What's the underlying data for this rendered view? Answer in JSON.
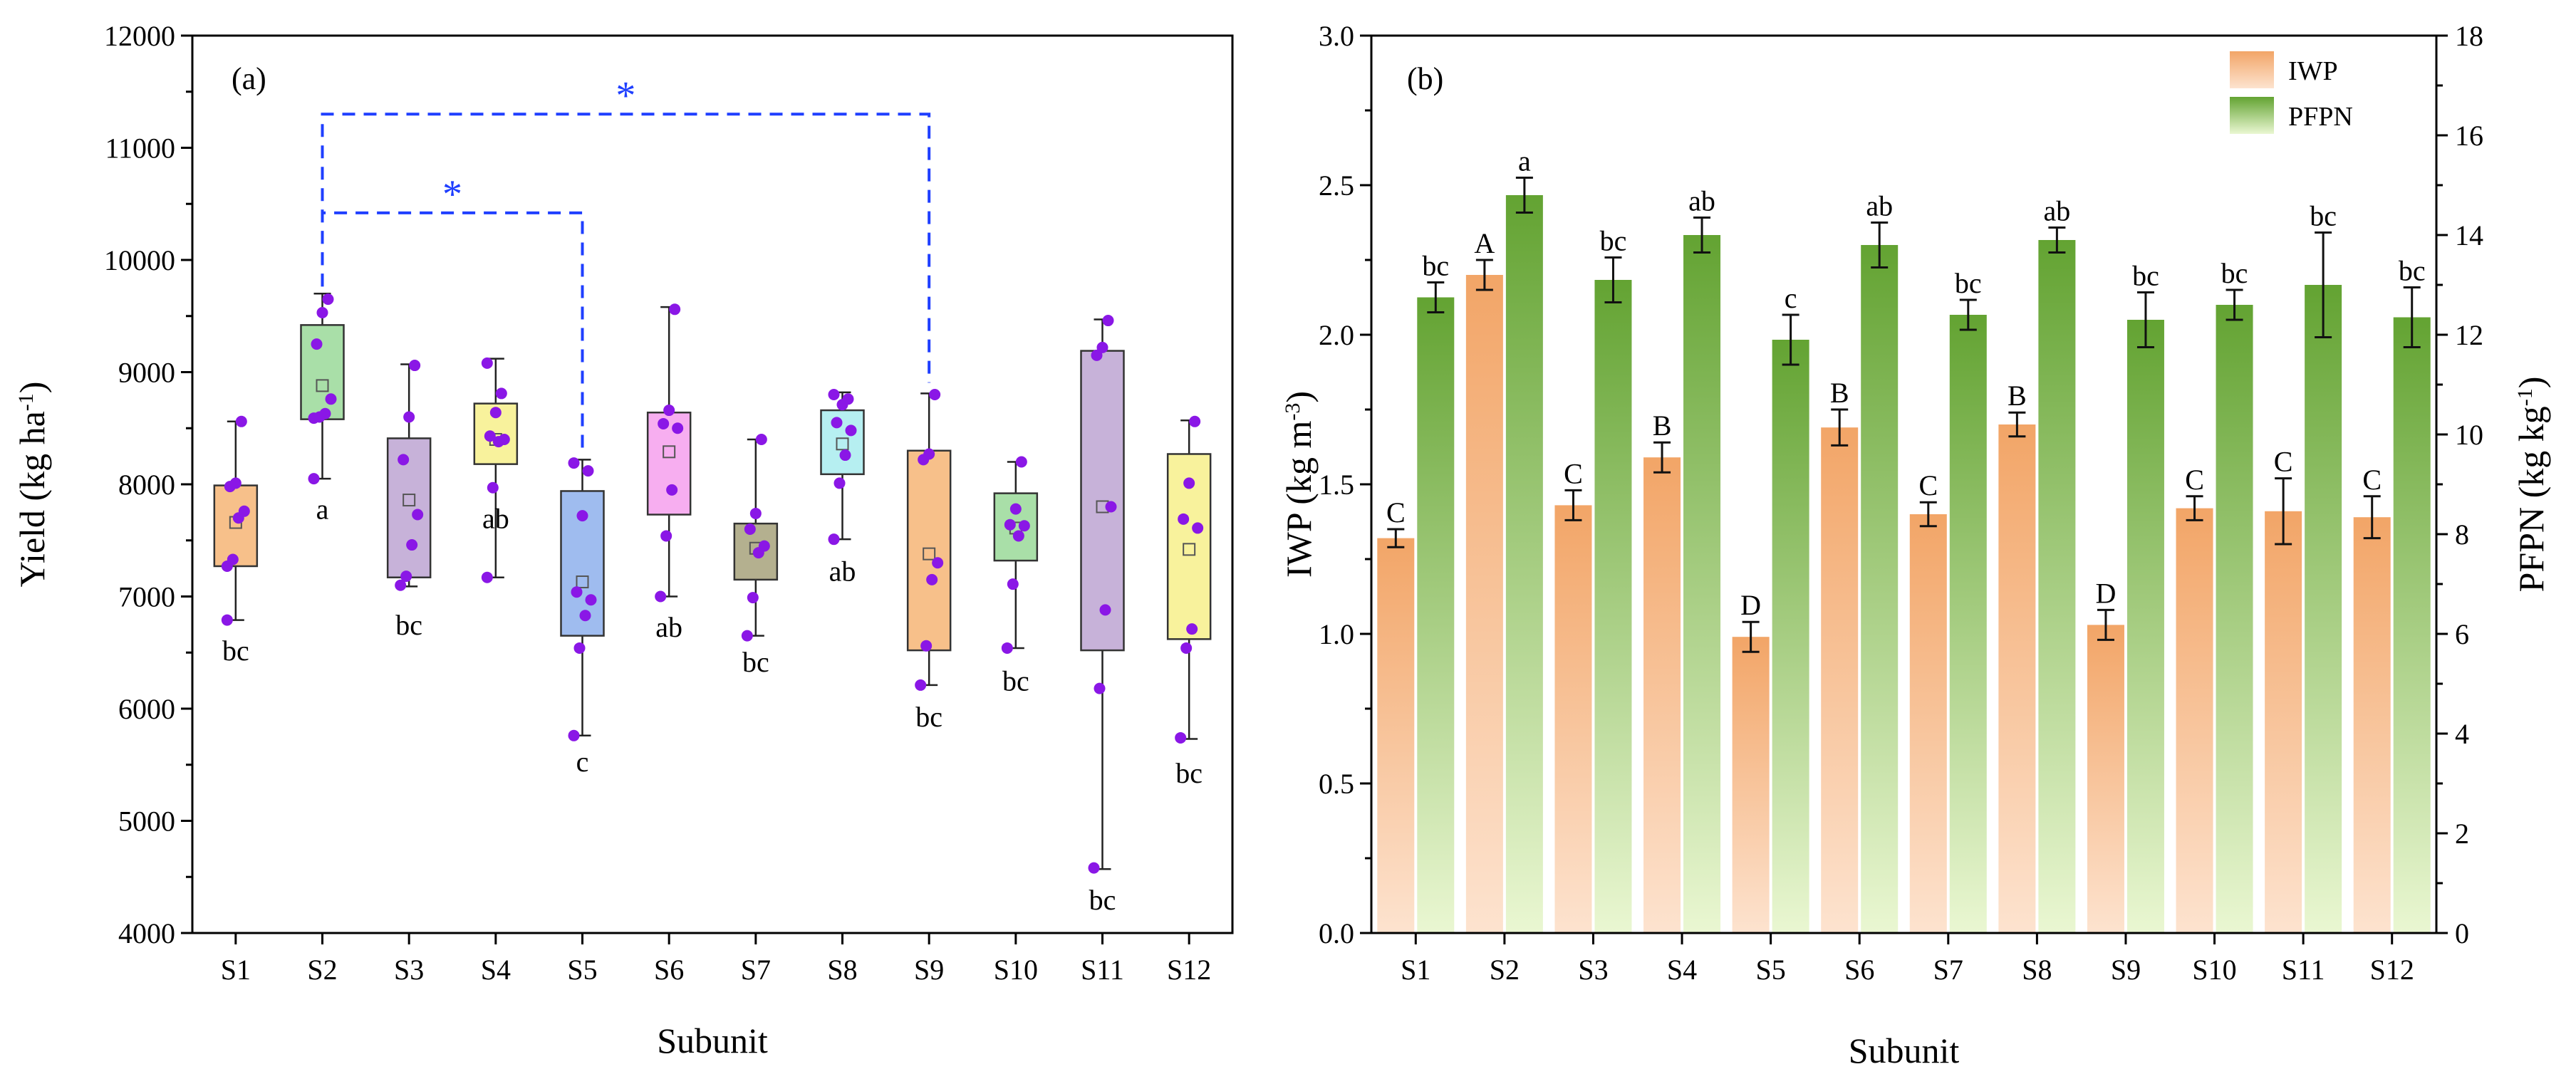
{
  "chart_data": [
    {
      "type": "box",
      "panel_label": "(a)",
      "xlabel": "Subunit",
      "ylabel": "Yield (kg ha",
      "ylabel_sup": "-1",
      "ylabel_close": ")",
      "ylim": [
        4000,
        12000
      ],
      "yticks": [
        "4000",
        "5000",
        "6000",
        "7000",
        "8000",
        "9000",
        "10000",
        "11000",
        "12000"
      ],
      "categories": [
        "S1",
        "S2",
        "S3",
        "S4",
        "S5",
        "S6",
        "S7",
        "S8",
        "S9",
        "S10",
        "S11",
        "S12"
      ],
      "boxes": [
        {
          "q1": 7270,
          "q3": 7990,
          "mean": 7660,
          "wlo": 6790,
          "whi": 8560,
          "color": "#f7c08a",
          "letter": "bc",
          "letter_y": 6520,
          "points": [
            7270,
            7330,
            7700,
            7760,
            7980,
            8010,
            8560,
            6790
          ]
        },
        {
          "q1": 8580,
          "q3": 9420,
          "mean": 8880,
          "wlo": 8050,
          "whi": 9700,
          "color": "#a9dfa8",
          "letter": "a",
          "letter_y": 7780,
          "points": [
            8590,
            8600,
            8630,
            8760,
            9250,
            9530,
            9650,
            8050
          ]
        },
        {
          "q1": 7170,
          "q3": 8410,
          "mean": 7860,
          "wlo": 7090,
          "whi": 9070,
          "color": "#c7b2d9",
          "letter": "bc",
          "letter_y": 6750,
          "points": [
            7100,
            7180,
            7460,
            7730,
            8220,
            8600,
            9060
          ]
        },
        {
          "q1": 8180,
          "q3": 8720,
          "mean": 8400,
          "wlo": 7170,
          "whi": 9120,
          "color": "#f8f29c",
          "letter": "ab",
          "letter_y": 7700,
          "points": [
            7170,
            7970,
            8380,
            8400,
            8430,
            8640,
            8810,
            9080
          ]
        },
        {
          "q1": 6650,
          "q3": 7940,
          "mean": 7130,
          "wlo": 5760,
          "whi": 8220,
          "color": "#9fbcef",
          "letter": "c",
          "letter_y": 5530,
          "points": [
            5760,
            6540,
            6830,
            6970,
            7040,
            7720,
            8120,
            8190
          ]
        },
        {
          "q1": 7730,
          "q3": 8640,
          "mean": 8290,
          "wlo": 7000,
          "whi": 9580,
          "color": "#f7aef0",
          "letter": "ab",
          "letter_y": 6730,
          "points": [
            7000,
            7540,
            7950,
            8500,
            8540,
            8660,
            9560
          ]
        },
        {
          "q1": 7150,
          "q3": 7650,
          "mean": 7430,
          "wlo": 6650,
          "whi": 8400,
          "color": "#b4b08f",
          "letter": "bc",
          "letter_y": 6420,
          "points": [
            6650,
            6990,
            7390,
            7450,
            7600,
            7740,
            8400
          ]
        },
        {
          "q1": 8090,
          "q3": 8660,
          "mean": 8360,
          "wlo": 7510,
          "whi": 8820,
          "color": "#b6eff1",
          "letter": "ab",
          "letter_y": 7230,
          "points": [
            7510,
            8010,
            8260,
            8480,
            8550,
            8710,
            8760,
            8800
          ]
        },
        {
          "q1": 6520,
          "q3": 8300,
          "mean": 7380,
          "wlo": 6210,
          "whi": 8810,
          "color": "#f7c08a",
          "letter": "bc",
          "letter_y": 5930,
          "points": [
            6210,
            6560,
            7150,
            7300,
            8220,
            8270,
            8800
          ]
        },
        {
          "q1": 7320,
          "q3": 7920,
          "mean": 7610,
          "wlo": 6540,
          "whi": 8200,
          "color": "#a9dfa8",
          "letter": "bc",
          "letter_y": 6250,
          "points": [
            6540,
            7110,
            7540,
            7630,
            7640,
            7780,
            8200
          ]
        },
        {
          "q1": 6520,
          "q3": 9190,
          "mean": 7800,
          "wlo": 4570,
          "whi": 9470,
          "color": "#c7b2d9",
          "letter": "bc",
          "letter_y": 4300,
          "points": [
            4580,
            6180,
            6880,
            7800,
            9150,
            9220,
            9460
          ]
        },
        {
          "q1": 6620,
          "q3": 8270,
          "mean": 7420,
          "wlo": 5730,
          "whi": 8570,
          "color": "#f8f29c",
          "letter": "bc",
          "letter_y": 5430,
          "points": [
            5740,
            6540,
            6710,
            7610,
            7690,
            8010,
            8560
          ]
        }
      ],
      "significance": [
        {
          "from": "S2",
          "to": "S5",
          "label": "*",
          "y": 10420
        },
        {
          "from": "S2",
          "to": "S9",
          "label": "*",
          "y": 11300
        }
      ]
    },
    {
      "type": "bar",
      "panel_label": "(b)",
      "xlabel": "Subunit",
      "ylabel_left": "IWP (kg m",
      "ylabel_left_sup": "-3",
      "ylabel_left_close": ")",
      "ylabel_right": "PFPN (kg kg",
      "ylabel_right_sup": "-1",
      "ylabel_right_close": ")",
      "ylim_left": [
        0,
        3.0
      ],
      "ylim_right": [
        0,
        18
      ],
      "yticks_left": [
        "0.0",
        "0.5",
        "1.0",
        "1.5",
        "2.0",
        "2.5",
        "3.0"
      ],
      "yticks_right": [
        "0",
        "2",
        "4",
        "6",
        "8",
        "10",
        "12",
        "14",
        "16",
        "18"
      ],
      "categories": [
        "S1",
        "S2",
        "S3",
        "S4",
        "S5",
        "S6",
        "S7",
        "S8",
        "S9",
        "S10",
        "S11",
        "S12"
      ],
      "legend": [
        "IWP",
        "PFPN"
      ],
      "series": [
        {
          "name": "IWP",
          "axis": "left",
          "color": "#f2a567",
          "values": [
            1.32,
            2.2,
            1.43,
            1.59,
            0.99,
            1.69,
            1.4,
            1.7,
            1.03,
            1.42,
            1.41,
            1.39
          ],
          "errors": [
            0.03,
            0.05,
            0.05,
            0.05,
            0.05,
            0.06,
            0.04,
            0.04,
            0.05,
            0.04,
            0.11,
            0.07
          ],
          "letters": [
            "C",
            "A",
            "C",
            "B",
            "D",
            "B",
            "C",
            "B",
            "D",
            "C",
            "C",
            "C"
          ]
        },
        {
          "name": "PFPN",
          "axis": "right",
          "color": "#6fae3a",
          "values": [
            12.75,
            14.8,
            13.1,
            14.0,
            11.9,
            13.8,
            12.4,
            13.9,
            12.3,
            12.6,
            13.0,
            12.35
          ],
          "errors": [
            0.3,
            0.35,
            0.45,
            0.35,
            0.5,
            0.45,
            0.3,
            0.25,
            0.55,
            0.3,
            1.05,
            0.6
          ],
          "letters": [
            "bc",
            "a",
            "bc",
            "ab",
            "c",
            "ab",
            "bc",
            "ab",
            "bc",
            "bc",
            "bc",
            "bc"
          ]
        }
      ]
    }
  ]
}
